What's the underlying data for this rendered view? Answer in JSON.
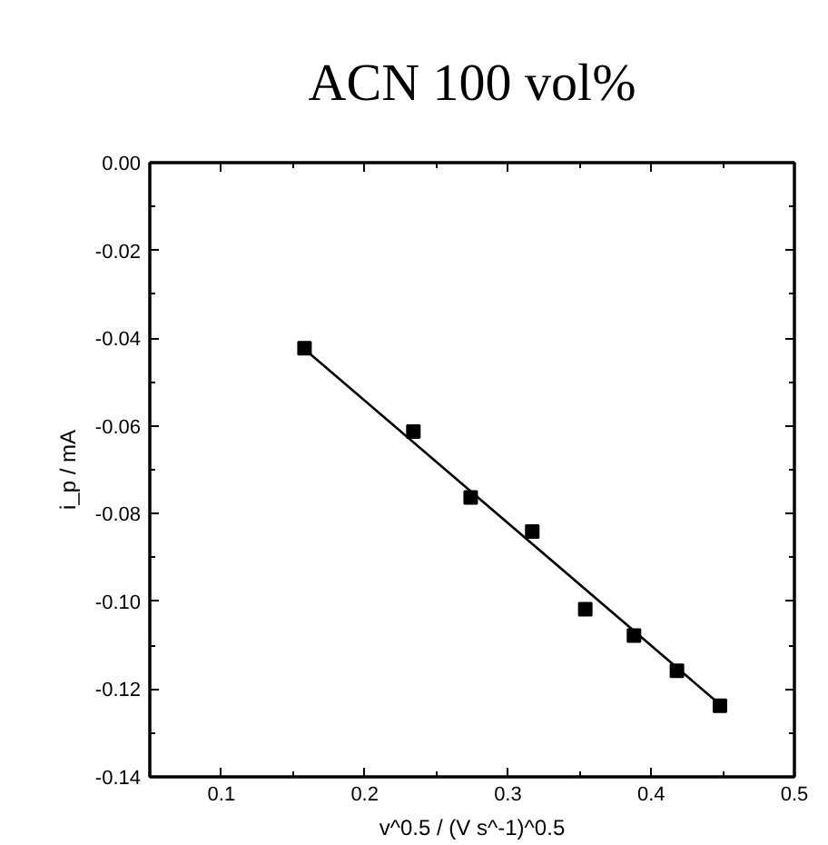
{
  "chart_data": {
    "type": "scatter",
    "title": "ACN 100 vol%",
    "xlabel": "v^0.5 / (V s^-1)^0.5",
    "ylabel": "i_p / mA",
    "series": [
      {
        "color": "#000000",
        "marker": "square",
        "x": [
          0.158,
          0.234,
          0.274,
          0.317,
          0.354,
          0.388,
          0.418,
          0.448
        ],
        "values": [
          -0.0423,
          -0.0613,
          -0.0763,
          -0.0841,
          -0.1018,
          -0.1078,
          -0.1158,
          -0.1238
        ]
      },
      {
        "type": "line",
        "color": "#000000",
        "line_style": "solid",
        "x": [
          0.158,
          0.448
        ],
        "values": [
          -0.0425,
          -0.1235
        ]
      }
    ],
    "xlim": [
      0.05,
      0.5
    ],
    "xticks": [
      0.1,
      0.2,
      0.3,
      0.4,
      0.5
    ],
    "ylim": [
      -0.14,
      0.0
    ],
    "yticks": [
      {
        "value": -0.14,
        "label": "-0.14"
      },
      {
        "value": -0.12,
        "label": "-0.12"
      },
      {
        "value": -0.1,
        "label": "-0.10"
      },
      {
        "value": -0.08,
        "label": "-0.08"
      },
      {
        "value": -0.06,
        "label": "-0.06"
      },
      {
        "value": -0.04,
        "label": "-0.04"
      },
      {
        "value": -0.02,
        "label": "-0.02"
      },
      {
        "value": 0.0,
        "label": "0.00"
      }
    ],
    "grid": false
  }
}
